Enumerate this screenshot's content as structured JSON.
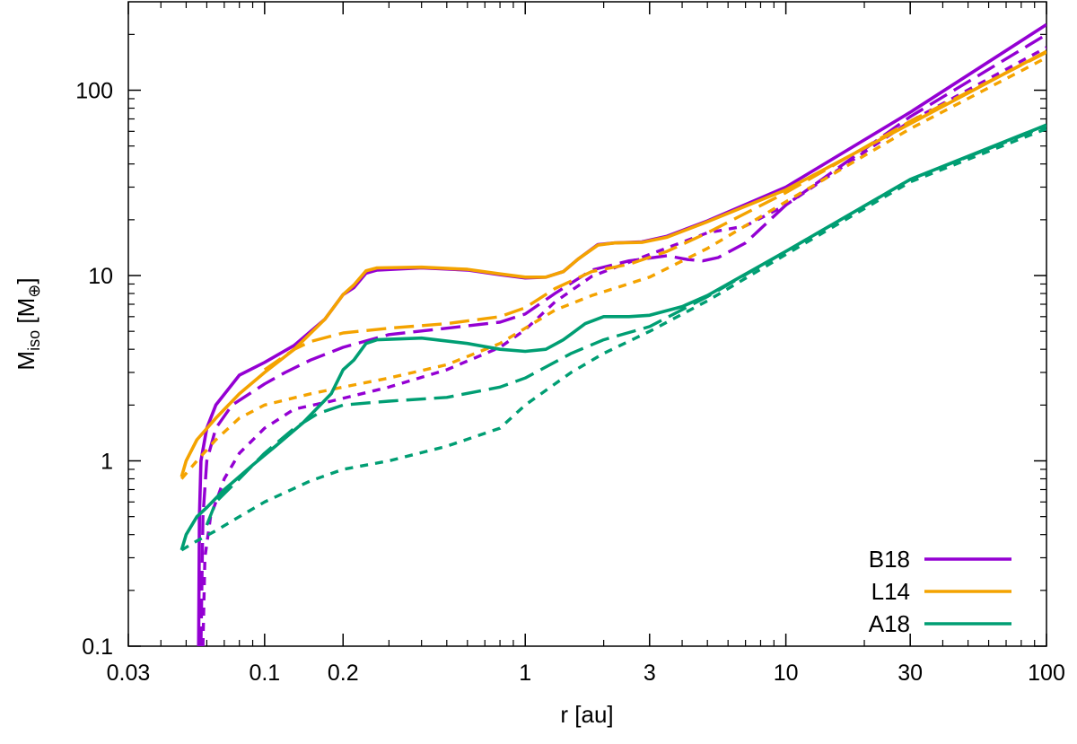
{
  "chart_data": {
    "type": "line",
    "xlabel": "r [au]",
    "ylabel": {
      "main": "M",
      "sub": "iso",
      "rest_open": " [M",
      "sub2": "⊕",
      "rest_close": "]"
    },
    "xscale": "log",
    "yscale": "log",
    "xlim": [
      0.03,
      100
    ],
    "ylim": [
      0.1,
      300
    ],
    "xticks": [
      0.03,
      0.1,
      0.2,
      1,
      3,
      10,
      30,
      100
    ],
    "xtick_labels": [
      "0.03",
      "0.1",
      "0.2",
      "1",
      "3",
      "10",
      "30",
      "100"
    ],
    "yticks": [
      0.1,
      1,
      10,
      100
    ],
    "ytick_labels": [
      "0.1",
      "1",
      "10",
      "100"
    ],
    "grid": false,
    "legend_position": "bottom-right",
    "series": [
      {
        "name": "B18",
        "color": "#9400d3",
        "dash": "solid",
        "points": [
          [
            0.0558,
            0.1
          ],
          [
            0.0562,
            0.5
          ],
          [
            0.057,
            1.0
          ],
          [
            0.06,
            1.5
          ],
          [
            0.065,
            2.0
          ],
          [
            0.08,
            2.9
          ],
          [
            0.1,
            3.4
          ],
          [
            0.13,
            4.2
          ],
          [
            0.17,
            5.8
          ],
          [
            0.2,
            7.9
          ],
          [
            0.22,
            8.6
          ],
          [
            0.245,
            10.3
          ],
          [
            0.27,
            10.7
          ],
          [
            0.4,
            11.0
          ],
          [
            0.6,
            10.7
          ],
          [
            0.8,
            10.1
          ],
          [
            1.0,
            9.7
          ],
          [
            1.2,
            9.8
          ],
          [
            1.4,
            10.5
          ],
          [
            1.6,
            12.3
          ],
          [
            1.9,
            14.7
          ],
          [
            2.2,
            15.0
          ],
          [
            2.8,
            15.2
          ],
          [
            3.5,
            16.3
          ],
          [
            5,
            19.7
          ],
          [
            10,
            30
          ],
          [
            30,
            76
          ],
          [
            100,
            226
          ]
        ]
      },
      {
        "name": "",
        "color": "#9400d3",
        "dash": "dashed",
        "points": [
          [
            0.057,
            0.1
          ],
          [
            0.058,
            0.5
          ],
          [
            0.06,
            1.0
          ],
          [
            0.065,
            1.5
          ],
          [
            0.075,
            2.0
          ],
          [
            0.1,
            2.6
          ],
          [
            0.12,
            3.0
          ],
          [
            0.15,
            3.5
          ],
          [
            0.2,
            4.1
          ],
          [
            0.3,
            4.8
          ],
          [
            0.5,
            5.2
          ],
          [
            0.8,
            5.6
          ],
          [
            1.0,
            6.2
          ],
          [
            1.3,
            8.0
          ],
          [
            1.8,
            10.7
          ],
          [
            2.5,
            12.0
          ],
          [
            3.5,
            12.8
          ],
          [
            4.2,
            12.2
          ],
          [
            4.8,
            12.0
          ],
          [
            5.5,
            12.5
          ],
          [
            7,
            15
          ],
          [
            10,
            24
          ],
          [
            30,
            72
          ],
          [
            100,
            200
          ]
        ]
      },
      {
        "name": "",
        "color": "#9400d3",
        "dash": "dotted",
        "points": [
          [
            0.058,
            0.1
          ],
          [
            0.059,
            0.3
          ],
          [
            0.062,
            0.5
          ],
          [
            0.07,
            0.8
          ],
          [
            0.08,
            1.1
          ],
          [
            0.1,
            1.5
          ],
          [
            0.13,
            1.9
          ],
          [
            0.18,
            2.1
          ],
          [
            0.3,
            2.5
          ],
          [
            0.5,
            3.1
          ],
          [
            0.8,
            4.1
          ],
          [
            1.0,
            5.1
          ],
          [
            1.3,
            7.2
          ],
          [
            1.8,
            9.9
          ],
          [
            3,
            13
          ],
          [
            5,
            17
          ],
          [
            7,
            18.5
          ],
          [
            10,
            24
          ],
          [
            30,
            68
          ],
          [
            100,
            170
          ]
        ]
      },
      {
        "name": "L14",
        "color": "#f4a300",
        "dash": "solid",
        "points": [
          [
            0.048,
            0.82
          ],
          [
            0.05,
            1.0
          ],
          [
            0.055,
            1.3
          ],
          [
            0.065,
            1.7
          ],
          [
            0.08,
            2.3
          ],
          [
            0.1,
            3.0
          ],
          [
            0.13,
            4.0
          ],
          [
            0.17,
            5.8
          ],
          [
            0.2,
            7.9
          ],
          [
            0.22,
            8.9
          ],
          [
            0.245,
            10.6
          ],
          [
            0.27,
            11.0
          ],
          [
            0.4,
            11.1
          ],
          [
            0.6,
            10.8
          ],
          [
            0.8,
            10.2
          ],
          [
            1.0,
            9.8
          ],
          [
            1.2,
            9.8
          ],
          [
            1.4,
            10.5
          ],
          [
            1.6,
            12.3
          ],
          [
            1.9,
            14.6
          ],
          [
            2.2,
            15.0
          ],
          [
            2.8,
            15.1
          ],
          [
            3.5,
            16.1
          ],
          [
            5,
            19.5
          ],
          [
            10,
            29
          ],
          [
            30,
            66
          ],
          [
            100,
            162
          ]
        ]
      },
      {
        "name": "",
        "color": "#f4a300",
        "dash": "dashed",
        "points": [
          [
            0.1,
            3.1
          ],
          [
            0.13,
            4.0
          ],
          [
            0.15,
            4.4
          ],
          [
            0.2,
            4.9
          ],
          [
            0.3,
            5.2
          ],
          [
            0.5,
            5.5
          ],
          [
            0.8,
            6.0
          ],
          [
            1.0,
            6.7
          ],
          [
            1.3,
            8.5
          ],
          [
            1.8,
            10.5
          ],
          [
            2.5,
            11.5
          ],
          [
            3.5,
            13.5
          ],
          [
            5,
            17
          ],
          [
            10,
            28
          ],
          [
            30,
            68
          ],
          [
            100,
            160
          ]
        ]
      },
      {
        "name": "",
        "color": "#f4a300",
        "dash": "dotted",
        "points": [
          [
            0.048,
            0.8
          ],
          [
            0.055,
            1.0
          ],
          [
            0.065,
            1.3
          ],
          [
            0.08,
            1.7
          ],
          [
            0.1,
            2.0
          ],
          [
            0.15,
            2.3
          ],
          [
            0.2,
            2.5
          ],
          [
            0.3,
            2.8
          ],
          [
            0.5,
            3.3
          ],
          [
            0.8,
            4.3
          ],
          [
            1.0,
            5.2
          ],
          [
            1.3,
            6.5
          ],
          [
            1.8,
            7.8
          ],
          [
            3,
            9.8
          ],
          [
            5,
            14
          ],
          [
            10,
            25
          ],
          [
            30,
            62
          ],
          [
            100,
            150
          ]
        ]
      },
      {
        "name": "A18",
        "color": "#009e73",
        "dash": "solid",
        "points": [
          [
            0.048,
            0.33
          ],
          [
            0.05,
            0.4
          ],
          [
            0.055,
            0.5
          ],
          [
            0.06,
            0.56
          ],
          [
            0.07,
            0.7
          ],
          [
            0.09,
            0.95
          ],
          [
            0.11,
            1.2
          ],
          [
            0.14,
            1.6
          ],
          [
            0.18,
            2.3
          ],
          [
            0.2,
            3.1
          ],
          [
            0.22,
            3.5
          ],
          [
            0.245,
            4.3
          ],
          [
            0.27,
            4.5
          ],
          [
            0.4,
            4.6
          ],
          [
            0.6,
            4.3
          ],
          [
            0.8,
            4.0
          ],
          [
            1.0,
            3.9
          ],
          [
            1.2,
            4.0
          ],
          [
            1.4,
            4.5
          ],
          [
            1.7,
            5.5
          ],
          [
            2.0,
            6.0
          ],
          [
            2.5,
            6.0
          ],
          [
            3,
            6.1
          ],
          [
            4,
            6.8
          ],
          [
            5,
            7.8
          ],
          [
            10,
            13.5
          ],
          [
            30,
            33
          ],
          [
            100,
            65
          ]
        ]
      },
      {
        "name": "",
        "color": "#009e73",
        "dash": "dashed",
        "points": [
          [
            0.06,
            0.45
          ],
          [
            0.065,
            0.6
          ],
          [
            0.08,
            0.8
          ],
          [
            0.1,
            1.1
          ],
          [
            0.13,
            1.5
          ],
          [
            0.16,
            1.8
          ],
          [
            0.2,
            2.0
          ],
          [
            0.3,
            2.1
          ],
          [
            0.5,
            2.2
          ],
          [
            0.8,
            2.5
          ],
          [
            1.0,
            2.8
          ],
          [
            1.5,
            3.8
          ],
          [
            2.0,
            4.5
          ],
          [
            3,
            5.3
          ],
          [
            5,
            7.7
          ],
          [
            10,
            13.5
          ],
          [
            30,
            33
          ],
          [
            100,
            64
          ]
        ]
      },
      {
        "name": "",
        "color": "#009e73",
        "dash": "dotted",
        "points": [
          [
            0.048,
            0.33
          ],
          [
            0.055,
            0.37
          ],
          [
            0.065,
            0.42
          ],
          [
            0.08,
            0.5
          ],
          [
            0.1,
            0.6
          ],
          [
            0.15,
            0.78
          ],
          [
            0.2,
            0.9
          ],
          [
            0.3,
            1.0
          ],
          [
            0.5,
            1.2
          ],
          [
            0.8,
            1.5
          ],
          [
            1.0,
            2.0
          ],
          [
            1.5,
            3.0
          ],
          [
            2.0,
            3.8
          ],
          [
            3,
            5.0
          ],
          [
            5,
            7.3
          ],
          [
            10,
            13
          ],
          [
            30,
            32
          ],
          [
            100,
            62
          ]
        ]
      }
    ]
  }
}
